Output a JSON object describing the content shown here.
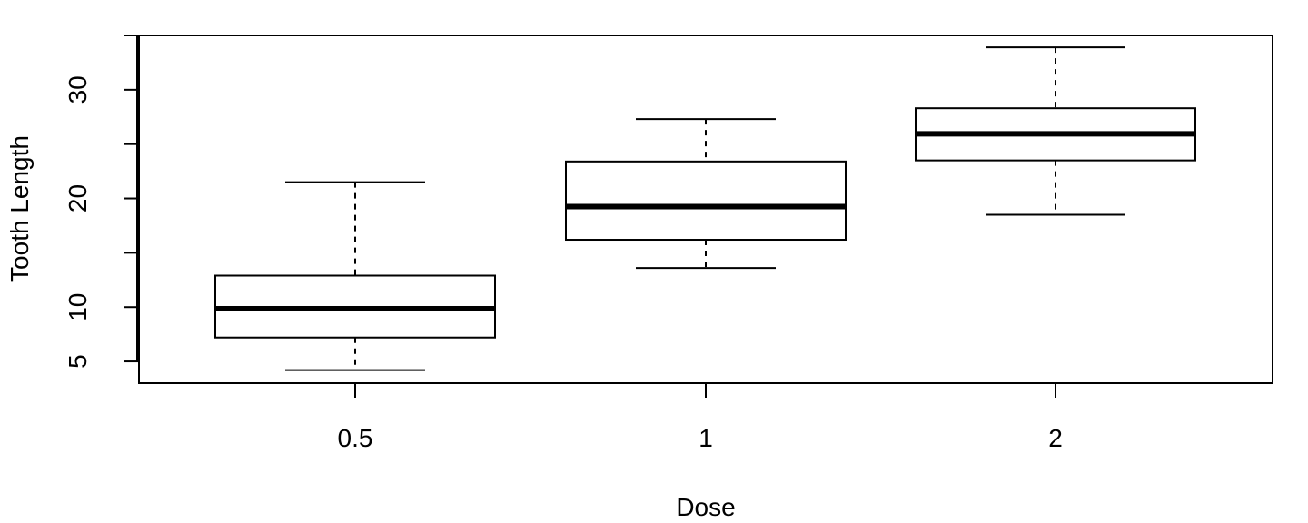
{
  "chart_data": {
    "type": "boxplot",
    "xlabel": "Dose",
    "ylabel": "Tooth Length",
    "categories": [
      "0.5",
      "1",
      "2"
    ],
    "yticks": [
      5,
      10,
      20,
      30
    ],
    "yminor_ticks": [
      15,
      25
    ],
    "ylim": [
      3,
      35
    ],
    "boxes": [
      {
        "category": "0.5",
        "whisker_low": 4.2,
        "q1": 7.2,
        "median": 9.85,
        "q3": 12.9,
        "whisker_high": 21.5
      },
      {
        "category": "1",
        "whisker_low": 13.6,
        "q1": 16.2,
        "median": 19.25,
        "q3": 23.4,
        "whisker_high": 27.3
      },
      {
        "category": "2",
        "whisker_low": 18.5,
        "q1": 23.5,
        "median": 25.95,
        "q3": 28.3,
        "whisker_high": 33.9
      }
    ],
    "grid": false,
    "legend": "none"
  }
}
